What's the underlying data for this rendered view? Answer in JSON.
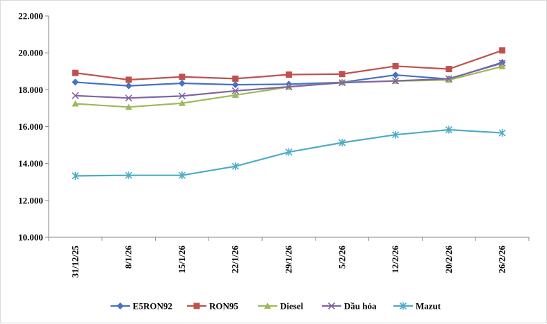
{
  "chart_data": {
    "type": "line",
    "title": "",
    "xlabel": "",
    "ylabel": "",
    "categories": [
      "31/12/25",
      "8/1/26",
      "15/1/26",
      "22/1/26",
      "29/1/26",
      "5/2/26",
      "12/2/26",
      "20/2/26",
      "26/2/26"
    ],
    "ylim": [
      10000,
      22000
    ],
    "yticks": [
      10000,
      12000,
      14000,
      16000,
      18000,
      20000,
      22000
    ],
    "ytick_labels": [
      "10.000",
      "12.000",
      "14.000",
      "16.000",
      "18.000",
      "20.000",
      "22.000"
    ],
    "grid": false,
    "legend_position": "bottom",
    "series": [
      {
        "name": "E5RON92",
        "color": "#4472C4",
        "marker": "diamond",
        "values": [
          18410,
          18210,
          18350,
          18270,
          18300,
          18400,
          18800,
          18580,
          19480
        ]
      },
      {
        "name": "RON95",
        "color": "#C0504D",
        "marker": "square",
        "values": [
          18910,
          18540,
          18700,
          18600,
          18820,
          18850,
          19280,
          19120,
          20130
        ]
      },
      {
        "name": "Diesel",
        "color": "#9BBB59",
        "marker": "triangle",
        "values": [
          17240,
          17060,
          17270,
          17710,
          18150,
          18400,
          18470,
          18530,
          19260
        ]
      },
      {
        "name": "Dầu hỏa",
        "color": "#8064A2",
        "marker": "x",
        "values": [
          17680,
          17550,
          17660,
          17940,
          18160,
          18380,
          18480,
          18600,
          19440
        ]
      },
      {
        "name": "Mazut",
        "color": "#4BACC6",
        "marker": "star",
        "values": [
          13330,
          13360,
          13360,
          13850,
          14620,
          15130,
          15560,
          15830,
          15660
        ]
      }
    ]
  }
}
